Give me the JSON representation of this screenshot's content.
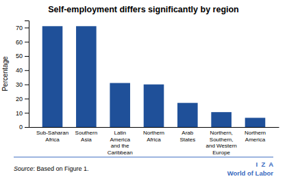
{
  "chart_data": {
    "type": "bar",
    "title": "Self-employment differs significantly by region",
    "categories": [
      "Sub-Saharan\nAfrica",
      "Southern\nAsia",
      "Latin\nAmerica\nand the\nCaribbean",
      "Northern\nAfrica",
      "Arab\nStates",
      "Northern,\nSouthern,\nand Western\nEurope",
      "Northern\nAmerica"
    ],
    "values": [
      71,
      71,
      31,
      30,
      17,
      10.5,
      6.5
    ],
    "color": "#1F5099",
    "ylabel": "Percentage",
    "ylim": [
      0,
      75
    ],
    "yticks": [
      0,
      10,
      20,
      30,
      40,
      50,
      60,
      70
    ],
    "annotations": [
      "Source",
      ": Based on Figure 1.",
      "I  Z  A",
      "World of Labor"
    ]
  }
}
